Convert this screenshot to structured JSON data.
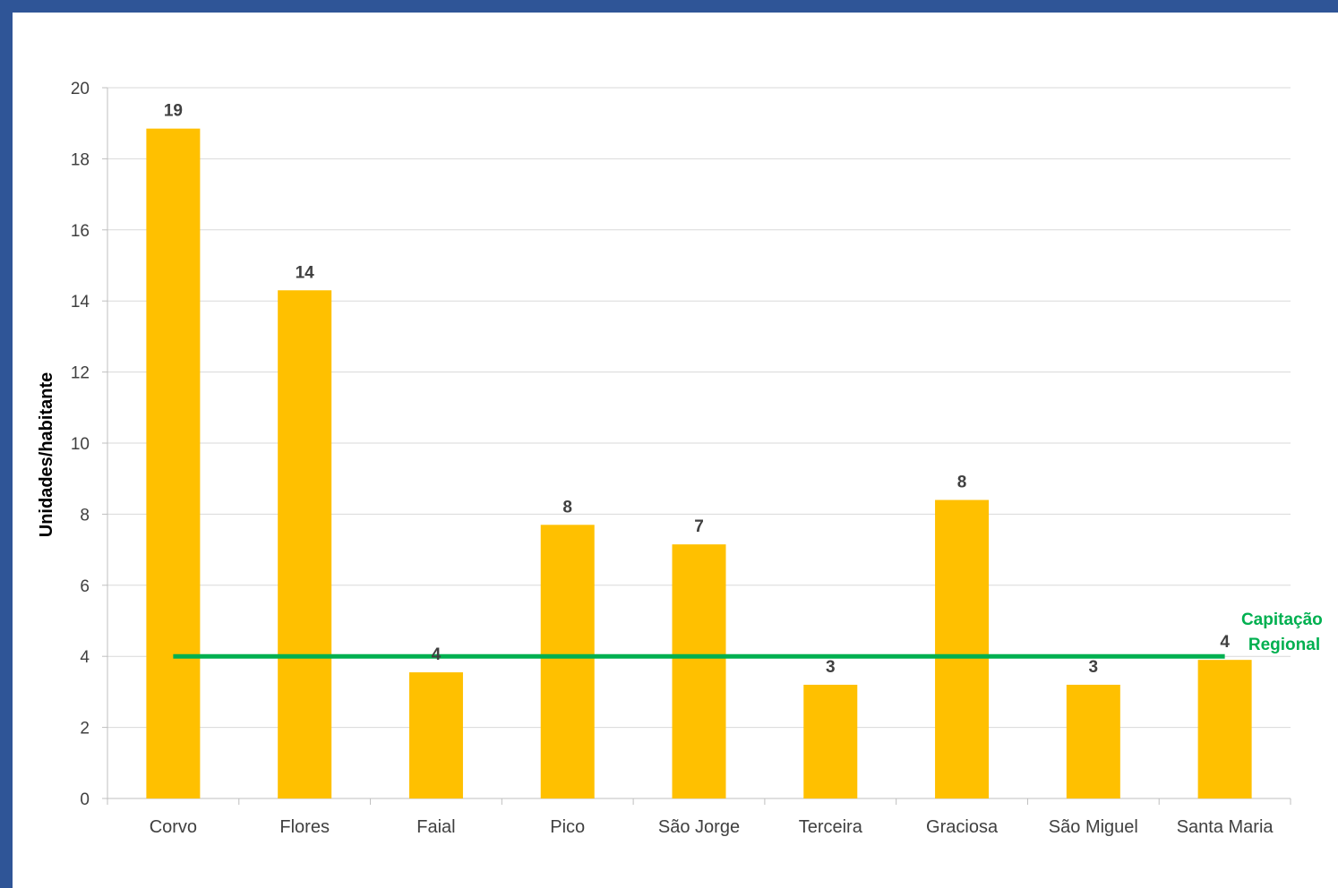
{
  "chart_data": {
    "type": "bar",
    "title": "",
    "xlabel": "",
    "ylabel": "Unidades/habitante",
    "ylim": [
      0,
      20
    ],
    "yticks": [
      0,
      2,
      4,
      6,
      8,
      10,
      12,
      14,
      16,
      18,
      20
    ],
    "grid": true,
    "categories": [
      "Corvo",
      "Flores",
      "Faial",
      "Pico",
      "São Jorge",
      "Terceira",
      "Graciosa",
      "São Miguel",
      "Santa Maria"
    ],
    "values": [
      18.85,
      14.3,
      3.55,
      7.7,
      7.15,
      3.2,
      8.4,
      3.2,
      3.9
    ],
    "data_labels": [
      "19",
      "14",
      "4",
      "8",
      "7",
      "3",
      "8",
      "3",
      "4"
    ],
    "bar_color": "#ffc000",
    "reference_line": {
      "value": 4,
      "label_line1": "Capitação",
      "label_line2": "Regional",
      "color": "#00b050"
    }
  }
}
